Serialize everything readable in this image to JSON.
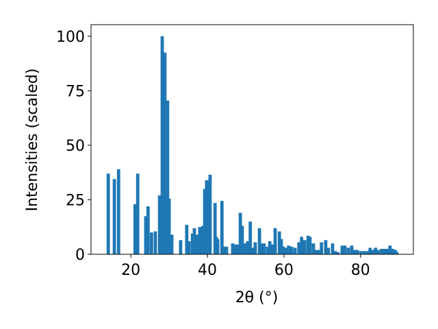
{
  "chart_data": {
    "type": "bar",
    "x_label": "2θ (°)",
    "y_label": "Intensities (scaled)",
    "color": "#1f77b4",
    "x": [
      14.1,
      15.7,
      16.8,
      21.1,
      21.8,
      23.9,
      24.5,
      25.4,
      26.4,
      27.5,
      28.2,
      28.9,
      29.6,
      30.0,
      30.7,
      33.0,
      34.6,
      35.2,
      36.1,
      36.6,
      37.3,
      38.0,
      38.8,
      39.3,
      39.8,
      40.4,
      40.7,
      42.0,
      42.3,
      42.7,
      43.8,
      44.5,
      45.0,
      46.6,
      47.3,
      48.0,
      48.6,
      49.1,
      49.8,
      50.5,
      51.2,
      51.8,
      52.5,
      53.6,
      54.1,
      54.8,
      55.7,
      56.3,
      57.0,
      57.7,
      58.8,
      59.3,
      59.8,
      60.5,
      61.2,
      62.0,
      62.9,
      63.9,
      64.6,
      65.4,
      66.3,
      66.8,
      67.7,
      68.4,
      69.1,
      69.8,
      70.9,
      71.6,
      72.7,
      73.4,
      74.1,
      75.2,
      75.9,
      76.8,
      77.7,
      78.4,
      79.1,
      80.0,
      80.9,
      81.8,
      82.5,
      83.2,
      83.9,
      84.6,
      85.5,
      86.3,
      87.0,
      87.7,
      88.4,
      89.1,
      89.5
    ],
    "values": [
      37,
      34.5,
      39,
      23,
      37,
      17.5,
      22,
      10,
      10.5,
      27,
      100,
      92.5,
      70.5,
      25.5,
      9,
      6.5,
      13.5,
      6,
      9.5,
      12,
      9,
      12.5,
      13,
      30,
      34,
      33.5,
      36.5,
      23.5,
      8,
      7,
      24.5,
      3.5,
      3.5,
      5,
      4.5,
      4.5,
      19,
      13,
      5,
      6,
      15,
      3,
      5.5,
      12,
      5,
      5,
      3.5,
      6,
      4.5,
      12,
      10.5,
      7,
      3.5,
      3,
      4,
      3.5,
      3,
      5.5,
      8,
      6.5,
      8.5,
      8,
      5,
      2,
      2,
      5.5,
      6.5,
      3,
      5,
      1.5,
      1,
      4,
      4,
      3,
      4,
      2,
      2,
      1.5,
      1.5,
      1.5,
      3,
      2,
      3,
      2,
      2.5,
      2.5,
      2.5,
      4,
      2.5,
      2,
      1
    ],
    "xlim": [
      9.6,
      93.8
    ],
    "ylim": [
      0,
      105.3
    ],
    "xticks": [
      20,
      40,
      60,
      80
    ],
    "yticks": [
      0,
      25,
      50,
      75,
      100
    ]
  }
}
